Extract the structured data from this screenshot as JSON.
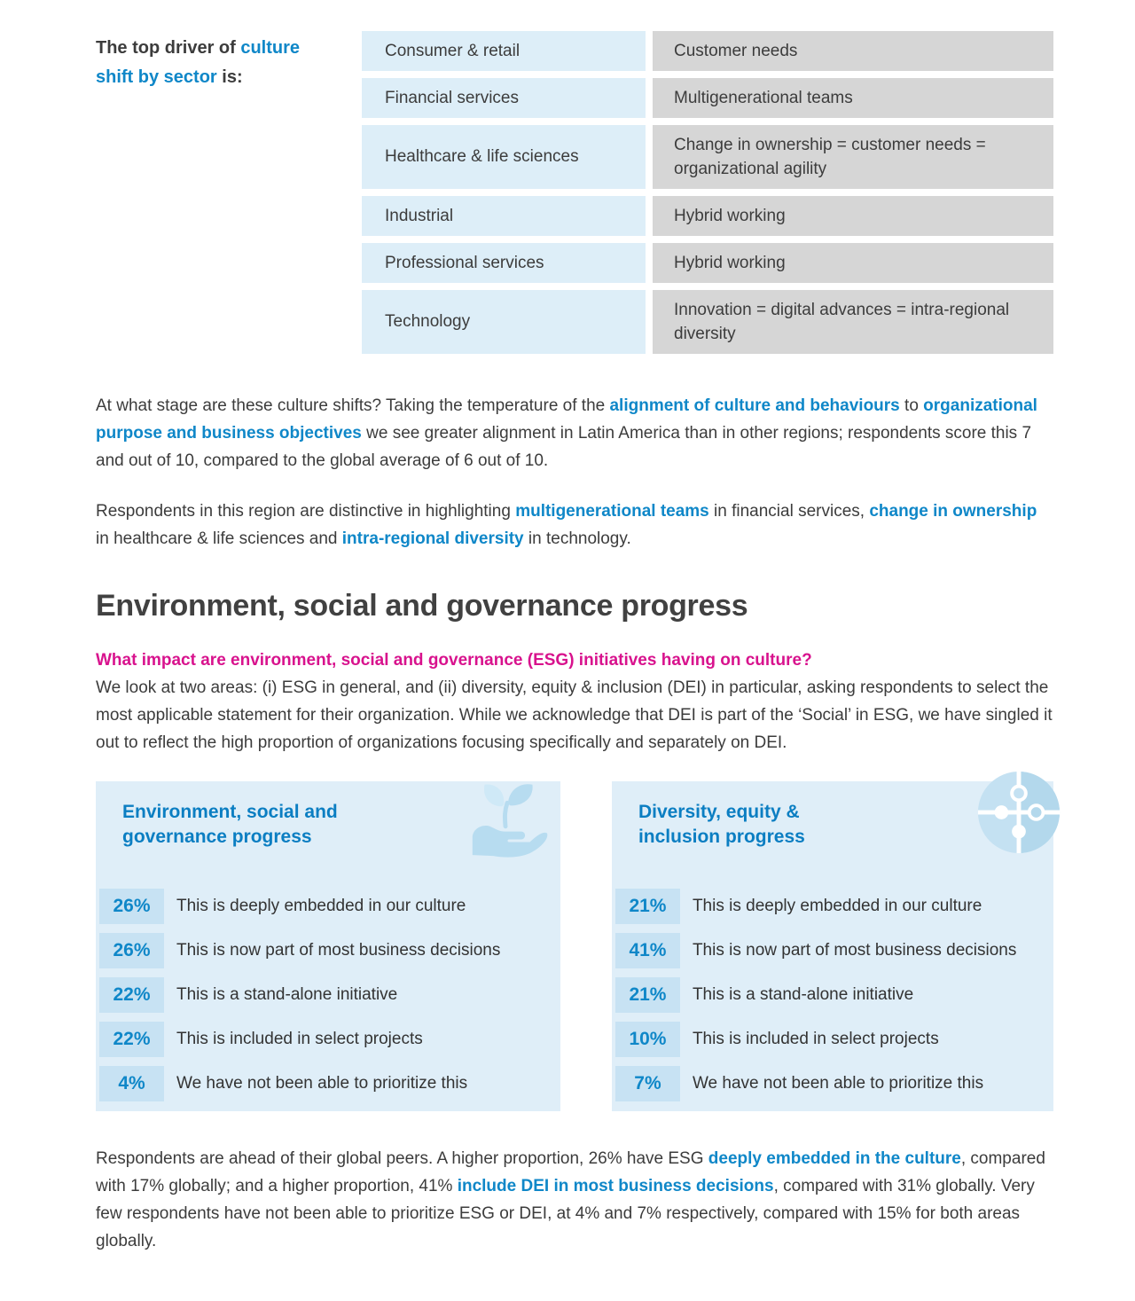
{
  "colors": {
    "accent": "#0f87c8",
    "accent-dark": "#0b7ec2",
    "magenta": "#d8128d",
    "cellblue": "#ddeef8",
    "cellgray": "#d6d6d6",
    "panelblue": "#dfeef8",
    "badgeblue": "#c7e2f3",
    "iconblue": "#b7dcf0",
    "iconblue-light": "#cfe9f7",
    "text": "#3c3c3c",
    "heading": "#414141"
  },
  "intro": {
    "runs": [
      {
        "t": "The top driver of "
      },
      {
        "t": "culture shift by sector",
        "hl": true
      },
      {
        "t": " is:"
      }
    ]
  },
  "sector_table": {
    "rows": [
      {
        "sector": "Consumer & retail",
        "driver": "Customer needs"
      },
      {
        "sector": "Financial services",
        "driver": "Multigenerational teams"
      },
      {
        "sector": "Healthcare & life sciences",
        "driver": "Change in ownership = customer needs = organizational agility"
      },
      {
        "sector": "Industrial",
        "driver": "Hybrid working"
      },
      {
        "sector": "Professional services",
        "driver": "Hybrid working"
      },
      {
        "sector": "Technology",
        "driver": "Innovation = digital advances = intra-regional diversity"
      }
    ]
  },
  "paragraph1": {
    "runs": [
      {
        "t": "At what stage are these culture shifts? Taking the temperature of the "
      },
      {
        "t": "alignment of culture and behaviours",
        "hl": true
      },
      {
        "t": " to "
      },
      {
        "t": "organizational purpose and business objectives",
        "hl": true
      },
      {
        "t": " we see greater alignment in Latin America than in other regions; respondents score this 7 and out of 10, compared to the global average of 6 out of 10."
      }
    ]
  },
  "paragraph2": {
    "runs": [
      {
        "t": "Respondents in this region are distinctive in highlighting "
      },
      {
        "t": "multigenerational teams",
        "hl": true
      },
      {
        "t": " in financial services, "
      },
      {
        "t": "change in ownership",
        "hl": true
      },
      {
        "t": " in healthcare & life sciences and "
      },
      {
        "t": "intra-regional diversity",
        "hl": true
      },
      {
        "t": " in technology."
      }
    ]
  },
  "section": {
    "heading": "Environment, social and governance progress",
    "lead_question": "What impact are environment, social and governance (ESG) initiatives having on culture?",
    "intro_paragraph": "We look at two areas: (i) ESG in general, and (ii) diversity, equity & inclusion (DEI) in particular, asking respondents to select the most applicable statement for their organization. While we acknowledge that DEI is part of the ‘Social’ in ESG, we have singled it out to reflect the high proportion of organizations focusing specifically and separately on DEI."
  },
  "panels": [
    {
      "title": "Environment, social and\ngovernance progress",
      "icon": "plant-in-hand-icon",
      "stats": [
        {
          "value": "26%",
          "label": "This is deeply embedded in our culture"
        },
        {
          "value": "26%",
          "label": "This is now part of most business decisions"
        },
        {
          "value": "22%",
          "label": "This is a stand-alone initiative"
        },
        {
          "value": "22%",
          "label": "This is included in select projects"
        },
        {
          "value": "4%",
          "label": "We have not been able to prioritize this"
        }
      ]
    },
    {
      "title": "Diversity, equity &\ninclusion progress",
      "icon": "puzzle-icon",
      "stats": [
        {
          "value": "21%",
          "label": "This is deeply embedded in our culture"
        },
        {
          "value": "41%",
          "label": "This is now part of most business decisions"
        },
        {
          "value": "21%",
          "label": "This is a stand-alone initiative"
        },
        {
          "value": "10%",
          "label": "This is included in select projects"
        },
        {
          "value": "7%",
          "label": "We have not been able to prioritize this"
        }
      ]
    }
  ],
  "closing": {
    "runs": [
      {
        "t": "Respondents are ahead of their global peers. A higher proportion, 26% have ESG "
      },
      {
        "t": "deeply embedded in the culture",
        "hl": true
      },
      {
        "t": ", compared with 17% globally; and a higher proportion, 41% "
      },
      {
        "t": "include DEI in most business decisions",
        "hl": true
      },
      {
        "t": ", compared with 31% globally. Very few respondents have not been able to prioritize ESG or DEI, at 4% and 7% respectively, compared with 15% for both areas globally."
      }
    ]
  }
}
